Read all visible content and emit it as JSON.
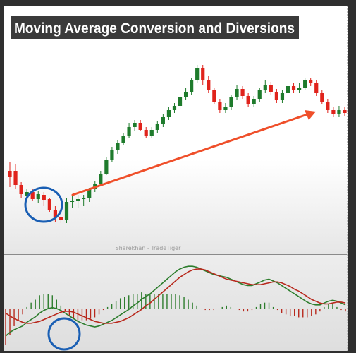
{
  "title": "Moving Average Conversion and Diversions",
  "watermark": "Sharekhan - TradeTiger",
  "colors": {
    "up": "#1e7b2c",
    "down": "#e0231c",
    "arrow": "#ef4f2a",
    "circle": "#1a5fb4",
    "macd_line": "#2d7d2d",
    "signal_line": "#b8281c",
    "title_bg": "#3a3a3a"
  },
  "chart_data": [
    {
      "type": "candlestick",
      "title": "Moving Average Conversion and Diversions",
      "grid": false,
      "candles": [
        [
          168,
          242,
          250,
          230,
          265
        ],
        [
          163,
          242,
          262,
          232,
          268
        ],
        [
          158,
          262,
          275,
          258,
          280
        ],
        [
          153,
          278,
          272,
          268,
          282
        ],
        [
          148,
          272,
          282,
          268,
          285
        ],
        [
          143,
          282,
          275,
          270,
          288
        ],
        [
          138,
          276,
          283,
          272,
          292
        ],
        [
          133,
          282,
          297,
          280,
          300
        ],
        [
          128,
          297,
          308,
          292,
          314
        ],
        [
          123,
          307,
          312,
          296,
          316
        ],
        [
          118,
          312,
          286,
          280,
          316
        ],
        [
          113,
          286,
          284,
          276,
          294
        ],
        [
          108,
          284,
          282,
          276,
          294
        ],
        [
          103,
          282,
          280,
          276,
          292
        ],
        [
          97,
          280,
          268,
          266,
          286
        ],
        [
          92,
          268,
          260,
          256,
          272
        ],
        [
          87,
          260,
          246,
          242,
          262
        ],
        [
          82,
          246,
          226,
          222,
          248
        ],
        [
          77,
          226,
          212,
          208,
          230
        ],
        [
          72,
          212,
          202,
          198,
          218
        ],
        [
          67,
          202,
          192,
          188,
          206
        ],
        [
          62,
          192,
          180,
          174,
          196
        ],
        [
          57,
          180,
          174,
          170,
          186
        ],
        [
          52,
          174,
          184,
          170,
          186
        ],
        [
          47,
          184,
          192,
          180,
          196
        ],
        [
          42,
          192,
          184,
          180,
          196
        ],
        [
          37,
          184,
          176,
          172,
          188
        ],
        [
          32,
          176,
          166,
          162,
          180
        ],
        [
          27,
          166,
          156,
          152,
          170
        ],
        [
          22,
          156,
          150,
          146,
          160
        ],
        [
          17,
          150,
          138,
          134,
          154
        ],
        [
          11,
          138,
          130,
          124,
          142
        ],
        [
          6,
          130,
          114,
          110,
          134
        ],
        [
          1,
          114,
          96,
          92,
          118
        ],
        [
          -4,
          96,
          114,
          92,
          120
        ],
        [
          -9,
          114,
          128,
          108,
          132
        ],
        [
          -14,
          128,
          144,
          124,
          148
        ],
        [
          -19,
          144,
          156,
          140,
          160
        ],
        [
          -24,
          156,
          152,
          146,
          160
        ],
        [
          -29,
          152,
          138,
          134,
          156
        ],
        [
          -34,
          138,
          126,
          120,
          142
        ],
        [
          -39,
          126,
          136,
          122,
          140
        ],
        [
          -44,
          136,
          148,
          132,
          152
        ],
        [
          -49,
          148,
          140,
          136,
          152
        ],
        [
          -54,
          140,
          128,
          124,
          144
        ],
        [
          -59,
          128,
          120,
          114,
          132
        ],
        [
          -64,
          120,
          130,
          116,
          134
        ],
        [
          -69,
          130,
          142,
          126,
          146
        ],
        [
          -74,
          142,
          132,
          128,
          146
        ],
        [
          -79,
          132,
          122,
          118,
          136
        ],
        [
          -84,
          122,
          128,
          118,
          132
        ],
        [
          -90,
          128,
          124,
          118,
          132
        ],
        [
          -95,
          124,
          114,
          110,
          128
        ],
        [
          -100,
          114,
          118,
          110,
          122
        ],
        [
          -105,
          118,
          132,
          114,
          136
        ],
        [
          -110,
          132,
          144,
          128,
          148
        ],
        [
          -115,
          144,
          156,
          140,
          160
        ],
        [
          -120,
          156,
          162,
          152,
          166
        ],
        [
          -125,
          162,
          156,
          150,
          166
        ],
        [
          -130,
          156,
          160,
          152,
          164
        ]
      ]
    },
    {
      "type": "macd",
      "macd": [
        -3.0,
        -2.6,
        -2.3,
        -2.1,
        -1.9,
        -1.5,
        -1.2,
        -0.9,
        -0.5,
        -0.2,
        0.0,
        0.1,
        0.0,
        -0.2,
        -0.5,
        -0.8,
        -1.1,
        -1.4,
        -1.6,
        -1.8,
        -1.9,
        -2.0,
        -1.9,
        -1.7,
        -1.5,
        -1.3,
        -1.0,
        -0.7,
        -0.4,
        -0.1,
        0.3,
        0.6,
        1.0,
        1.3,
        1.6,
        2.0,
        2.4,
        2.8,
        3.2,
        3.6,
        4.0,
        4.3,
        4.5,
        4.6,
        4.6,
        4.5,
        4.3,
        4.1,
        3.9,
        3.7,
        3.6,
        3.5,
        3.4,
        3.2,
        3.0,
        2.8,
        2.6,
        2.5,
        2.5,
        2.7,
        2.9,
        3.1,
        3.2,
        3.0,
        2.8,
        2.5,
        2.2,
        1.9,
        1.6,
        1.3,
        1.0,
        0.7,
        0.5,
        0.4,
        0.4,
        0.6,
        0.8,
        0.9,
        0.8,
        0.6,
        0.4
      ],
      "signal": [
        -0.5,
        -0.8,
        -1.1,
        -1.3,
        -1.5,
        -1.6,
        -1.6,
        -1.5,
        -1.4,
        -1.2,
        -1.0,
        -0.8,
        -0.6,
        -0.4,
        -0.3,
        -0.3,
        -0.4,
        -0.6,
        -0.8,
        -1.0,
        -1.2,
        -1.4,
        -1.5,
        -1.6,
        -1.6,
        -1.6,
        -1.5,
        -1.4,
        -1.2,
        -1.0,
        -0.7,
        -0.4,
        -0.1,
        0.3,
        0.6,
        1.0,
        1.4,
        1.8,
        2.2,
        2.6,
        3.0,
        3.4,
        3.7,
        4.0,
        4.2,
        4.3,
        4.3,
        4.2,
        4.0,
        3.8,
        3.6,
        3.4,
        3.2,
        3.1,
        3.0,
        2.9,
        2.8,
        2.7,
        2.6,
        2.6,
        2.6,
        2.7,
        2.8,
        2.9,
        2.9,
        2.8,
        2.6,
        2.4,
        2.1,
        1.9,
        1.6,
        1.3,
        1.0,
        0.8,
        0.6,
        0.5,
        0.5,
        0.6,
        0.7,
        0.7,
        0.6
      ]
    }
  ]
}
